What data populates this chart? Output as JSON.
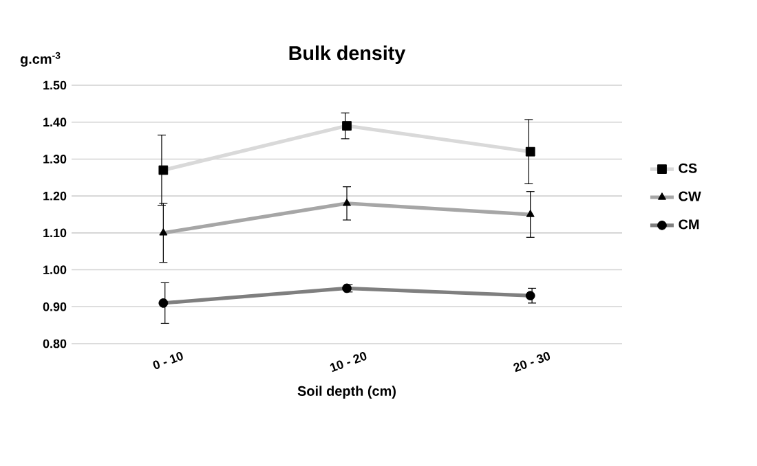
{
  "chart_data": {
    "type": "line",
    "title": "Bulk density",
    "xlabel": "Soil depth (cm)",
    "ylabel": "g.cm$^{-3}$",
    "categories": [
      "0 - 10",
      "10 - 20",
      "20 - 30"
    ],
    "series": [
      {
        "name": "CS",
        "color": "#d9d9d9",
        "marker": "square",
        "values": [
          1.27,
          1.39,
          1.32
        ],
        "errors": [
          0.095,
          0.035,
          0.087
        ]
      },
      {
        "name": "CW",
        "color": "#a6a6a6",
        "marker": "triangle",
        "values": [
          1.1,
          1.18,
          1.15
        ],
        "errors": [
          0.08,
          0.045,
          0.062
        ]
      },
      {
        "name": "CM",
        "color": "#7f7f7f",
        "marker": "circle",
        "values": [
          0.91,
          0.95,
          0.93
        ],
        "errors": [
          0.055,
          0.01,
          0.02
        ]
      }
    ],
    "ylim": [
      0.8,
      1.5
    ],
    "yticks": [
      {
        "value": 0.8,
        "label": "0.80"
      },
      {
        "value": 0.9,
        "label": "0.90"
      },
      {
        "value": 1.0,
        "label": "1.00"
      },
      {
        "value": 1.1,
        "label": "1.10"
      },
      {
        "value": 1.2,
        "label": "1.20"
      },
      {
        "value": 1.3,
        "label": "1.30"
      },
      {
        "value": 1.4,
        "label": "1.40"
      },
      {
        "value": 1.5,
        "label": "1.50"
      }
    ],
    "grid": "y",
    "legend": "right",
    "line_style": "solid"
  }
}
